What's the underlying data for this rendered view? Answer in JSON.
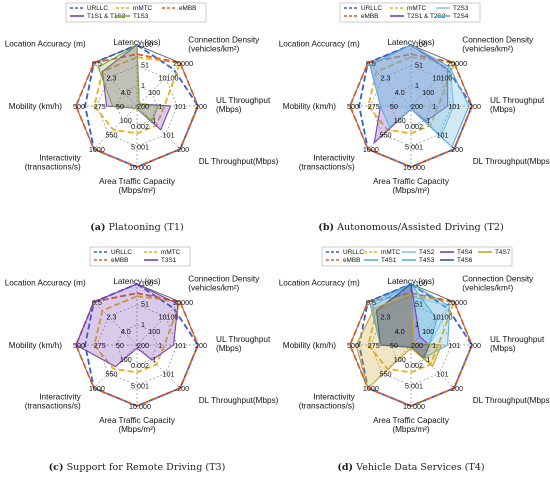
{
  "colors": {
    "URLLC": "#2e5fd0",
    "mMTC": "#e6b21e",
    "eMBB": "#dd5b27",
    "T1S1 & T1S2": "#7a3fb0",
    "T1S3": "#7fa83a",
    "T2S1 & T2S2": "#7a3fb0",
    "T2S3": "#8ac7e3",
    "T2S4": "#5ab1dc",
    "T3S1": "#7a3fb0",
    "T4S1": "#5ab1dc",
    "T4S2": "#8ac7e3",
    "T4S3": "#5ab1dc",
    "T4S4": "#7a3fb0",
    "T4S6": "#2f5d8c",
    "T4S7": "#c9a12a",
    "grid": "#555555"
  },
  "axes": {
    "labels": [
      "Latency (ms)",
      "Connection Density (vehicles/km²)",
      "UL Throughput (Mbps)",
      "DL Throughput(Mbps)",
      "Area Traffic Capacity (Mbps/m²)",
      "Interactivity (transactions/s)",
      "Mobility (km/h)",
      "Location Accuracy (m)"
    ],
    "ticks": [
      [
        "1",
        "51",
        "100"
      ],
      [
        "100",
        "10100",
        "20000"
      ],
      [
        "1",
        "101",
        "200"
      ],
      [
        "1",
        "101",
        "200"
      ],
      [
        "0.002",
        "5.001",
        "10.000"
      ],
      [
        "100",
        "550",
        "1000"
      ],
      [
        "50",
        "275",
        "500"
      ],
      [
        "4.0",
        "2.3",
        "0.5"
      ]
    ],
    "center_tick": "200"
  },
  "chart_data": [
    {
      "type": "radar",
      "caption_letter": "(a)",
      "caption": "Platooning (T1)",
      "legend": [
        "URLLC",
        "mMTC",
        "eMBB",
        "T1S1 & T1S2",
        "T1S3"
      ],
      "series": [
        {
          "name": "URLLC",
          "values": [
            1.0,
            0.85,
            1.0,
            1.0,
            1.0,
            1.0,
            0.85,
            1.0
          ],
          "filled": false,
          "dashed": true
        },
        {
          "name": "mMTC",
          "values": [
            0.8,
            1.0,
            0.45,
            0.45,
            0.45,
            0.55,
            0.7,
            0.8
          ],
          "filled": false,
          "dashed": true
        },
        {
          "name": "eMBB",
          "values": [
            0.85,
            1.0,
            1.0,
            1.0,
            1.0,
            1.0,
            1.0,
            1.0
          ],
          "filled": false,
          "dashed": true
        },
        {
          "name": "T1S1 & T1S2",
          "values": [
            1.0,
            0.05,
            0.55,
            0.55,
            0.05,
            0.05,
            0.5,
            0.8
          ],
          "filled": true,
          "dashed": false
        },
        {
          "name": "T1S3",
          "values": [
            1.0,
            0.05,
            0.35,
            0.35,
            0.05,
            0.05,
            0.4,
            0.9
          ],
          "filled": true,
          "dashed": false
        }
      ]
    },
    {
      "type": "radar",
      "caption_letter": "(b)",
      "caption": "Autonomous/Assisted Driving (T2)",
      "legend": [
        "URLLC",
        "mMTC",
        "T2S3",
        "eMBB",
        "T2S1 & T2S2",
        "T2S4"
      ],
      "series": [
        {
          "name": "URLLC",
          "values": [
            1.0,
            0.85,
            1.0,
            1.0,
            1.0,
            1.0,
            0.85,
            1.0
          ],
          "filled": false,
          "dashed": true
        },
        {
          "name": "mMTC",
          "values": [
            0.8,
            1.0,
            0.45,
            0.45,
            0.45,
            0.55,
            0.7,
            0.8
          ],
          "filled": false,
          "dashed": true
        },
        {
          "name": "eMBB",
          "values": [
            0.85,
            1.0,
            1.0,
            1.0,
            1.0,
            1.0,
            1.0,
            1.0
          ],
          "filled": false,
          "dashed": true
        },
        {
          "name": "T2S1 & T2S2",
          "values": [
            1.0,
            0.85,
            0.6,
            0.35,
            0.05,
            0.85,
            0.5,
            0.95
          ],
          "filled": true,
          "dashed": false
        },
        {
          "name": "T2S3",
          "values": [
            1.0,
            0.9,
            0.7,
            0.7,
            0.05,
            0.05,
            0.5,
            0.95
          ],
          "filled": true,
          "dashed": false
        },
        {
          "name": "T2S4",
          "values": [
            1.0,
            0.9,
            0.95,
            0.95,
            0.05,
            0.5,
            0.5,
            0.95
          ],
          "filled": true,
          "dashed": false
        }
      ]
    },
    {
      "type": "radar",
      "caption_letter": "(c)",
      "caption": "Support for Remote Driving (T3)",
      "legend": [
        "URLLC",
        "mMTC",
        "eMBB",
        "T3S1"
      ],
      "series": [
        {
          "name": "URLLC",
          "values": [
            1.0,
            0.85,
            1.0,
            1.0,
            1.0,
            1.0,
            0.85,
            1.0
          ],
          "filled": false,
          "dashed": true
        },
        {
          "name": "mMTC",
          "values": [
            0.8,
            1.0,
            0.45,
            0.45,
            0.45,
            0.55,
            0.7,
            0.8
          ],
          "filled": false,
          "dashed": true
        },
        {
          "name": "eMBB",
          "values": [
            0.85,
            1.0,
            1.0,
            1.0,
            1.0,
            1.0,
            1.0,
            1.0
          ],
          "filled": false,
          "dashed": true
        },
        {
          "name": "T3S1",
          "values": [
            1.0,
            0.95,
            0.6,
            0.35,
            0.05,
            0.5,
            1.0,
            1.0
          ],
          "filled": true,
          "dashed": false
        }
      ]
    },
    {
      "type": "radar",
      "caption_letter": "(d)",
      "caption": "Vehicle Data Services (T4)",
      "legend": [
        "URLLC",
        "mMTC",
        "T4S2",
        "T4S4",
        "T4S7",
        "eMBB",
        "T4S1",
        "T4S3",
        "T4S6"
      ],
      "series": [
        {
          "name": "URLLC",
          "values": [
            1.0,
            0.85,
            1.0,
            1.0,
            1.0,
            1.0,
            0.85,
            1.0
          ],
          "filled": false,
          "dashed": true
        },
        {
          "name": "mMTC",
          "values": [
            0.8,
            1.0,
            0.45,
            0.45,
            0.45,
            0.55,
            0.7,
            0.8
          ],
          "filled": false,
          "dashed": true
        },
        {
          "name": "eMBB",
          "values": [
            0.85,
            1.0,
            1.0,
            1.0,
            1.0,
            1.0,
            1.0,
            1.0
          ],
          "filled": false,
          "dashed": true
        },
        {
          "name": "T4S1",
          "values": [
            1.0,
            0.9,
            0.6,
            0.3,
            0.05,
            0.05,
            0.5,
            0.95
          ],
          "filled": true,
          "dashed": false
        },
        {
          "name": "T4S2",
          "values": [
            0.8,
            0.9,
            0.3,
            0.3,
            0.05,
            0.05,
            0.5,
            0.8
          ],
          "filled": true,
          "dashed": false
        },
        {
          "name": "T4S3",
          "values": [
            1.0,
            0.6,
            0.3,
            0.3,
            0.05,
            0.05,
            0.5,
            0.9
          ],
          "filled": true,
          "dashed": false
        },
        {
          "name": "T4S4",
          "values": [
            1.0,
            0.2,
            0.3,
            0.3,
            0.05,
            0.05,
            0.5,
            0.8
          ],
          "filled": true,
          "dashed": false
        },
        {
          "name": "T4S6",
          "values": [
            1.0,
            0.05,
            0.3,
            0.3,
            0.05,
            0.05,
            0.5,
            0.8
          ],
          "filled": true,
          "dashed": false
        },
        {
          "name": "T4S7",
          "values": [
            0.85,
            0.05,
            0.5,
            0.5,
            0.05,
            1.0,
            0.9,
            0.85
          ],
          "filled": true,
          "dashed": false
        }
      ]
    }
  ]
}
